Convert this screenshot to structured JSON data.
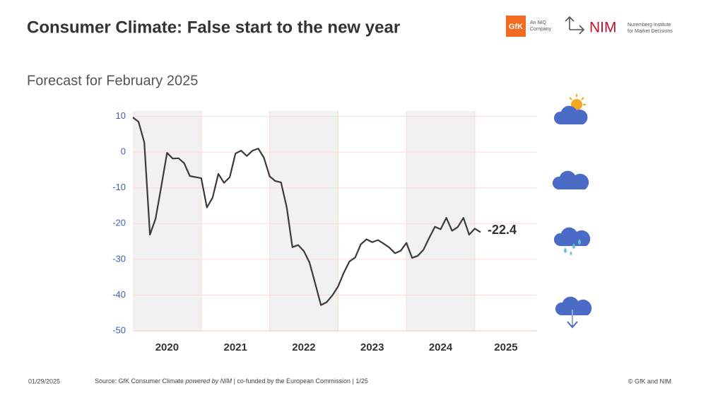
{
  "header": {
    "title": "Consumer Climate: False start to the new year",
    "subtitle": "Forecast for February 2025",
    "logo_gfk": "GfK",
    "logo_gfk_tag": [
      "An NIQ",
      "Company"
    ],
    "logo_nim": "NIM",
    "logo_nim_tag": [
      "Nuremberg Institute",
      "for Market Decisions"
    ]
  },
  "chart_data": {
    "type": "line",
    "x": [
      2020,
      2020.083,
      2020.167,
      2020.25,
      2020.333,
      2020.417,
      2020.5,
      2020.583,
      2020.667,
      2020.75,
      2020.833,
      2020.917,
      2021,
      2021.083,
      2021.167,
      2021.25,
      2021.333,
      2021.417,
      2021.5,
      2021.583,
      2021.667,
      2021.75,
      2021.833,
      2021.917,
      2022,
      2022.083,
      2022.167,
      2022.25,
      2022.333,
      2022.417,
      2022.5,
      2022.583,
      2022.667,
      2022.75,
      2022.833,
      2022.917,
      2023,
      2023.083,
      2023.167,
      2023.25,
      2023.333,
      2023.417,
      2023.5,
      2023.583,
      2023.667,
      2023.75,
      2023.833,
      2023.917,
      2024,
      2024.083,
      2024.167,
      2024.25,
      2024.333,
      2024.417,
      2024.5,
      2024.583,
      2024.667,
      2024.75,
      2024.833,
      2024.917,
      2025,
      2025.083
    ],
    "series": [
      {
        "name": "Consumer Climate",
        "color": "#3a3a3a",
        "values": [
          9.7,
          8.5,
          2.7,
          -23.1,
          -18.6,
          -9.4,
          -0.2,
          -1.8,
          -1.7,
          -3.1,
          -6.7,
          -7.0,
          -7.3,
          -15.5,
          -12.7,
          -6.1,
          -8.6,
          -7.0,
          -0.4,
          0.4,
          -1.1,
          0.4,
          1.0,
          -1.6,
          -6.8,
          -8.1,
          -8.5,
          -15.5,
          -26.6,
          -26.0,
          -27.7,
          -30.9,
          -36.8,
          -42.8,
          -42.0,
          -40.1,
          -37.6,
          -33.8,
          -30.6,
          -29.5,
          -25.8,
          -24.4,
          -25.2,
          -24.6,
          -25.6,
          -26.7,
          -28.3,
          -27.6,
          -25.4,
          -29.6,
          -29.0,
          -27.3,
          -24.0,
          -20.9,
          -21.6,
          -18.4,
          -22.0,
          -21.0,
          -18.4,
          -23.1,
          -21.4,
          -22.4
        ]
      }
    ],
    "xlim": [
      2020,
      2025.91
    ],
    "xticks": [
      2020,
      2021,
      2022,
      2023,
      2024,
      2025
    ],
    "ylim": [
      -50,
      11.5
    ],
    "yticks": [
      10,
      0,
      -10,
      -20,
      -30,
      -40,
      -50
    ],
    "grid": true
  },
  "footer": {
    "date": "01/29/2025",
    "source_prefix": "Source: GfK Consumer Climate ",
    "source_italic": "powered by NIM",
    "source_suffix": " | co-funded by the European Commission | 1/25",
    "copyright": "© GfK and NIM"
  }
}
